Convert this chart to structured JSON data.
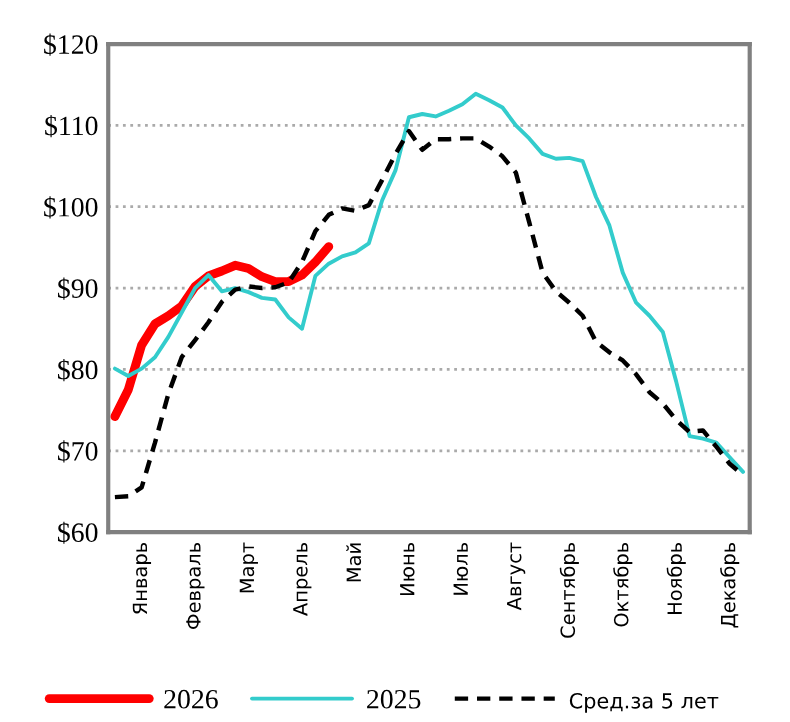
{
  "chart_data": {
    "type": "line",
    "categories": [
      null,
      null,
      "Январь",
      null,
      null,
      null,
      "Февраль",
      null,
      null,
      null,
      "Март",
      null,
      null,
      null,
      "Апрель",
      null,
      null,
      null,
      "Май",
      null,
      null,
      null,
      "Июнь",
      null,
      null,
      null,
      "Июль",
      null,
      null,
      null,
      "Август",
      null,
      null,
      null,
      "Сентябрь",
      null,
      null,
      null,
      "Октябрь",
      null,
      null,
      null,
      "Ноябрь",
      null,
      null,
      null,
      "Декабрь",
      null
    ],
    "ylim": [
      60,
      120
    ],
    "yticks": [
      {
        "value": 60,
        "label": "$60"
      },
      {
        "value": 70,
        "label": "$70"
      },
      {
        "value": 80,
        "label": "$80"
      },
      {
        "value": 90,
        "label": "$90"
      },
      {
        "value": 100,
        "label": "$100"
      },
      {
        "value": 110,
        "label": "$110"
      },
      {
        "value": 120,
        "label": "$120"
      }
    ],
    "grid": "y",
    "legend": "bottom",
    "marker": "none",
    "series": [
      {
        "name": "2026",
        "color": "#ff0000",
        "line_style": "solid",
        "values": [
          74.2,
          77.5,
          83,
          85.6,
          86.6,
          87.8,
          90.2,
          91.5,
          92.1,
          92.8,
          92.4,
          91.4,
          90.8,
          90.8,
          91.6,
          93.2,
          95.1,
          null,
          null,
          null,
          null,
          null,
          null,
          null,
          null,
          null,
          null,
          null,
          null,
          null,
          null,
          null,
          null,
          null,
          null,
          null,
          null,
          null,
          null,
          null,
          null,
          null,
          null,
          null,
          null,
          null,
          null,
          null
        ]
      },
      {
        "name": "2025",
        "color": "#33cccc",
        "line_style": "solid",
        "values": [
          80.1,
          79.2,
          80.1,
          81.5,
          84,
          87,
          90,
          91.6,
          89.6,
          90,
          89.5,
          88.8,
          88.6,
          86.4,
          85,
          91.5,
          93,
          93.9,
          94.4,
          95.5,
          100.8,
          104.5,
          111,
          111.4,
          111.1,
          111.8,
          112.6,
          113.9,
          113.1,
          112.2,
          110,
          108.4,
          106.5,
          105.9,
          106,
          105.6,
          101.2,
          97.7,
          91.9,
          88.2,
          86.6,
          84.6,
          78.5,
          71.8,
          71.5,
          71,
          69.2,
          67.4
        ]
      },
      {
        "name": "Сред.за 5 лет",
        "color": "#000000",
        "line_style": "dashed",
        "values": [
          64.3,
          64.4,
          65.5,
          71,
          77,
          81.5,
          83.6,
          85.8,
          88.3,
          89.8,
          90.2,
          90,
          90.1,
          90.7,
          93.2,
          97,
          99,
          99.8,
          99.5,
          100.2,
          103.3,
          106.5,
          109.3,
          107,
          108.3,
          108.3,
          108.4,
          108.4,
          107.4,
          106.2,
          104.2,
          98.1,
          91.9,
          89.6,
          88.2,
          86.6,
          83.4,
          82.1,
          81.1,
          79.4,
          77.2,
          75.8,
          73.8,
          72.3,
          72.5,
          70.5,
          68.4,
          67
        ]
      }
    ]
  }
}
